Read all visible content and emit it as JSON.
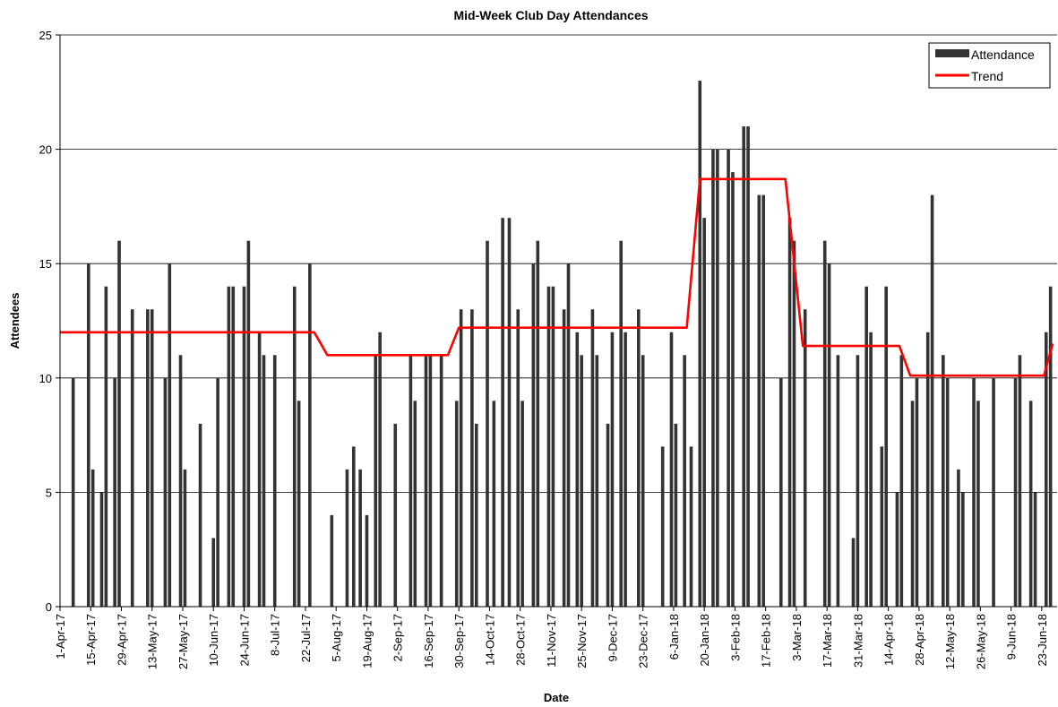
{
  "chart_data": {
    "type": "bar",
    "title": "Mid-Week Club Day Attendances",
    "xlabel": "Date",
    "ylabel": "Attendees",
    "ylim": [
      0,
      25
    ],
    "yticks": [
      "0",
      "5",
      "10",
      "15",
      "20",
      "25"
    ],
    "xlim": [
      "2017-04-01",
      "2018-06-30"
    ],
    "xticks": [
      "1-Apr-17",
      "15-Apr-17",
      "29-Apr-17",
      "13-May-17",
      "27-May-17",
      "10-Jun-17",
      "24-Jun-17",
      "8-Jul-17",
      "22-Jul-17",
      "5-Aug-17",
      "19-Aug-17",
      "2-Sep-17",
      "16-Sep-17",
      "30-Sep-17",
      "14-Oct-17",
      "28-Oct-17",
      "11-Nov-17",
      "25-Nov-17",
      "9-Dec-17",
      "23-Dec-17",
      "6-Jan-18",
      "20-Jan-18",
      "3-Feb-18",
      "17-Feb-18",
      "3-Mar-18",
      "17-Mar-18",
      "31-Mar-18",
      "14-Apr-18",
      "28-Apr-18",
      "12-May-18",
      "26-May-18",
      "9-Jun-18",
      "23-Jun-18"
    ],
    "grid": true,
    "legend_position": "top-right",
    "series": [
      {
        "name": "Attendance",
        "type": "bar",
        "color": "#333333",
        "points": [
          {
            "x": "2017-04-07",
            "y": 10
          },
          {
            "x": "2017-04-14",
            "y": 15
          },
          {
            "x": "2017-04-16",
            "y": 6
          },
          {
            "x": "2017-04-20",
            "y": 5
          },
          {
            "x": "2017-04-22",
            "y": 14
          },
          {
            "x": "2017-04-26",
            "y": 10
          },
          {
            "x": "2017-04-28",
            "y": 16
          },
          {
            "x": "2017-05-04",
            "y": 13
          },
          {
            "x": "2017-05-11",
            "y": 13
          },
          {
            "x": "2017-05-13",
            "y": 13
          },
          {
            "x": "2017-05-19",
            "y": 10
          },
          {
            "x": "2017-05-21",
            "y": 15
          },
          {
            "x": "2017-05-26",
            "y": 11
          },
          {
            "x": "2017-05-28",
            "y": 6
          },
          {
            "x": "2017-06-04",
            "y": 8
          },
          {
            "x": "2017-06-10",
            "y": 3
          },
          {
            "x": "2017-06-12",
            "y": 10
          },
          {
            "x": "2017-06-17",
            "y": 14
          },
          {
            "x": "2017-06-19",
            "y": 14
          },
          {
            "x": "2017-06-24",
            "y": 14
          },
          {
            "x": "2017-06-26",
            "y": 16
          },
          {
            "x": "2017-07-01",
            "y": 12
          },
          {
            "x": "2017-07-03",
            "y": 11
          },
          {
            "x": "2017-07-08",
            "y": 11
          },
          {
            "x": "2017-07-17",
            "y": 14
          },
          {
            "x": "2017-07-19",
            "y": 9
          },
          {
            "x": "2017-07-24",
            "y": 15
          },
          {
            "x": "2017-08-03",
            "y": 4
          },
          {
            "x": "2017-08-10",
            "y": 6
          },
          {
            "x": "2017-08-13",
            "y": 7
          },
          {
            "x": "2017-08-16",
            "y": 6
          },
          {
            "x": "2017-08-19",
            "y": 4
          },
          {
            "x": "2017-08-23",
            "y": 11
          },
          {
            "x": "2017-08-25",
            "y": 12
          },
          {
            "x": "2017-09-01",
            "y": 8
          },
          {
            "x": "2017-09-08",
            "y": 11
          },
          {
            "x": "2017-09-10",
            "y": 9
          },
          {
            "x": "2017-09-15",
            "y": 11
          },
          {
            "x": "2017-09-17",
            "y": 11
          },
          {
            "x": "2017-09-22",
            "y": 11
          },
          {
            "x": "2017-09-29",
            "y": 9
          },
          {
            "x": "2017-10-01",
            "y": 13
          },
          {
            "x": "2017-10-06",
            "y": 13
          },
          {
            "x": "2017-10-08",
            "y": 8
          },
          {
            "x": "2017-10-13",
            "y": 16
          },
          {
            "x": "2017-10-16",
            "y": 9
          },
          {
            "x": "2017-10-20",
            "y": 17
          },
          {
            "x": "2017-10-23",
            "y": 17
          },
          {
            "x": "2017-10-27",
            "y": 13
          },
          {
            "x": "2017-10-29",
            "y": 9
          },
          {
            "x": "2017-11-03",
            "y": 15
          },
          {
            "x": "2017-11-05",
            "y": 16
          },
          {
            "x": "2017-11-10",
            "y": 14
          },
          {
            "x": "2017-11-12",
            "y": 14
          },
          {
            "x": "2017-11-17",
            "y": 13
          },
          {
            "x": "2017-11-19",
            "y": 15
          },
          {
            "x": "2017-11-23",
            "y": 12
          },
          {
            "x": "2017-11-25",
            "y": 11
          },
          {
            "x": "2017-11-30",
            "y": 13
          },
          {
            "x": "2017-12-02",
            "y": 11
          },
          {
            "x": "2017-12-07",
            "y": 8
          },
          {
            "x": "2017-12-09",
            "y": 12
          },
          {
            "x": "2017-12-13",
            "y": 16
          },
          {
            "x": "2017-12-15",
            "y": 12
          },
          {
            "x": "2017-12-21",
            "y": 13
          },
          {
            "x": "2017-12-23",
            "y": 11
          },
          {
            "x": "2018-01-01",
            "y": 7
          },
          {
            "x": "2018-01-05",
            "y": 12
          },
          {
            "x": "2018-01-07",
            "y": 8
          },
          {
            "x": "2018-01-11",
            "y": 11
          },
          {
            "x": "2018-01-14",
            "y": 7
          },
          {
            "x": "2018-01-18",
            "y": 23
          },
          {
            "x": "2018-01-20",
            "y": 17
          },
          {
            "x": "2018-01-24",
            "y": 20
          },
          {
            "x": "2018-01-26",
            "y": 20
          },
          {
            "x": "2018-01-31",
            "y": 20
          },
          {
            "x": "2018-02-02",
            "y": 19
          },
          {
            "x": "2018-02-07",
            "y": 21
          },
          {
            "x": "2018-02-09",
            "y": 21
          },
          {
            "x": "2018-02-14",
            "y": 18
          },
          {
            "x": "2018-02-16",
            "y": 18
          },
          {
            "x": "2018-02-24",
            "y": 10
          },
          {
            "x": "2018-02-28",
            "y": 17
          },
          {
            "x": "2018-03-02",
            "y": 16
          },
          {
            "x": "2018-03-07",
            "y": 13
          },
          {
            "x": "2018-03-16",
            "y": 16
          },
          {
            "x": "2018-03-18",
            "y": 15
          },
          {
            "x": "2018-03-22",
            "y": 11
          },
          {
            "x": "2018-03-29",
            "y": 3
          },
          {
            "x": "2018-03-31",
            "y": 11
          },
          {
            "x": "2018-04-04",
            "y": 14
          },
          {
            "x": "2018-04-06",
            "y": 12
          },
          {
            "x": "2018-04-11",
            "y": 7
          },
          {
            "x": "2018-04-13",
            "y": 14
          },
          {
            "x": "2018-04-18",
            "y": 5
          },
          {
            "x": "2018-04-20",
            "y": 11
          },
          {
            "x": "2018-04-25",
            "y": 9
          },
          {
            "x": "2018-04-27",
            "y": 10
          },
          {
            "x": "2018-05-02",
            "y": 12
          },
          {
            "x": "2018-05-04",
            "y": 18
          },
          {
            "x": "2018-05-09",
            "y": 11
          },
          {
            "x": "2018-05-11",
            "y": 10
          },
          {
            "x": "2018-05-16",
            "y": 6
          },
          {
            "x": "2018-05-18",
            "y": 5
          },
          {
            "x": "2018-05-23",
            "y": 10
          },
          {
            "x": "2018-05-25",
            "y": 9
          },
          {
            "x": "2018-06-01",
            "y": 10
          },
          {
            "x": "2018-06-11",
            "y": 10
          },
          {
            "x": "2018-06-13",
            "y": 11
          },
          {
            "x": "2018-06-18",
            "y": 9
          },
          {
            "x": "2018-06-20",
            "y": 5
          },
          {
            "x": "2018-06-25",
            "y": 12
          },
          {
            "x": "2018-06-27",
            "y": 14
          }
        ]
      },
      {
        "name": "Trend",
        "type": "line",
        "color": "#ff0000",
        "points": [
          {
            "x": "2017-04-01",
            "y": 12
          },
          {
            "x": "2017-07-26",
            "y": 12
          },
          {
            "x": "2017-08-01",
            "y": 11
          },
          {
            "x": "2017-09-25",
            "y": 11
          },
          {
            "x": "2017-09-30",
            "y": 12.2
          },
          {
            "x": "2018-01-12",
            "y": 12.2
          },
          {
            "x": "2018-01-18",
            "y": 18.7
          },
          {
            "x": "2018-02-26",
            "y": 18.7
          },
          {
            "x": "2018-03-06",
            "y": 11.4
          },
          {
            "x": "2018-04-19",
            "y": 11.4
          },
          {
            "x": "2018-04-24",
            "y": 10.1
          },
          {
            "x": "2018-06-24",
            "y": 10.1
          },
          {
            "x": "2018-06-28",
            "y": 11.5
          }
        ]
      }
    ]
  }
}
